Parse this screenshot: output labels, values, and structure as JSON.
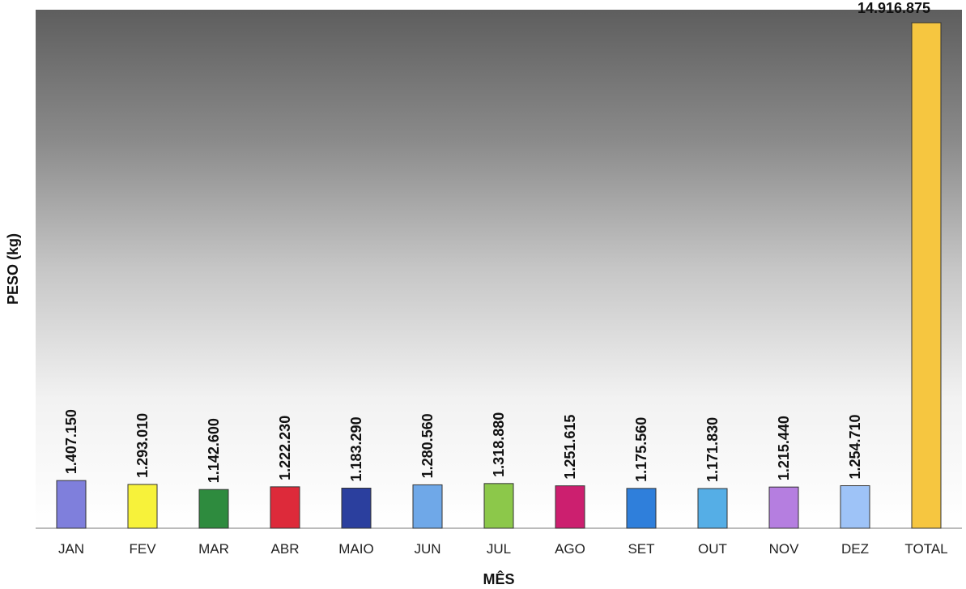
{
  "chart_data": {
    "type": "bar",
    "xlabel": "MÊS",
    "ylabel": "PESO (kg)",
    "categories": [
      "JAN",
      "FEV",
      "MAR",
      "ABR",
      "MAIO",
      "JUN",
      "JUL",
      "AGO",
      "SET",
      "OUT",
      "NOV",
      "DEZ",
      "TOTAL"
    ],
    "values": [
      1407150,
      1293010,
      1142600,
      1222230,
      1183290,
      1280560,
      1318880,
      1251615,
      1175560,
      1171830,
      1215440,
      1254710,
      14916875
    ],
    "value_labels": [
      "1.407.150",
      "1.293.010",
      "1.142.600",
      "1.222.230",
      "1.183.290",
      "1.280.560",
      "1.318.880",
      "1.251.615",
      "1.175.560",
      "1.171.830",
      "1.215.440",
      "1.254.710",
      "14.916.875"
    ],
    "colors": [
      "#7f7fdc",
      "#f7f23a",
      "#2e8b3e",
      "#dd2a3a",
      "#2b3f9e",
      "#6fa8e8",
      "#8cc84a",
      "#cc1f6f",
      "#2f7fdb",
      "#55aee6",
      "#b57ee0",
      "#9ec3f7",
      "#f6c640"
    ],
    "ylim": [
      0,
      15300000
    ],
    "grid": false,
    "legend": "none"
  }
}
